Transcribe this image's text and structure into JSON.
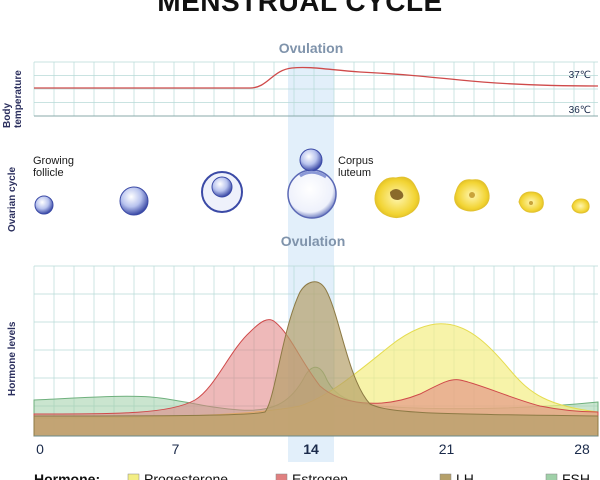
{
  "title": "MENSTRUAL CYCLE",
  "panels": {
    "body_temperature": {
      "label": "Body temperature",
      "ovulation_label": "Ovulation",
      "ticks": [
        "37℃",
        "36℃"
      ]
    },
    "ovarian_cycle": {
      "label": "Ovarian cycle",
      "growing_follicle": "Growing follicle",
      "corpus_luteum": "Corpus luteum",
      "ovulation_label": "Ovulation"
    },
    "hormone_levels": {
      "label": "Hormone levels",
      "x_ticks": [
        "0",
        "7",
        "14",
        "21",
        "28"
      ]
    }
  },
  "legend": {
    "title": "Hormone:",
    "items": [
      {
        "name": "Progesterone",
        "color": "#f3ee84"
      },
      {
        "name": "Estrogen",
        "color": "#e08080"
      },
      {
        "name": "LH",
        "color": "#b5a06a"
      },
      {
        "name": "FSH",
        "color": "#9fd0a8"
      }
    ]
  },
  "colors": {
    "grid": "#b7dad7",
    "temp_line": "#cf4a4a",
    "ovulation_band": "#d8e9f8",
    "axis_text": "#1a2a4a",
    "label_text": "#2b2f5e",
    "ovulation_text": "#7f93ab"
  }
}
